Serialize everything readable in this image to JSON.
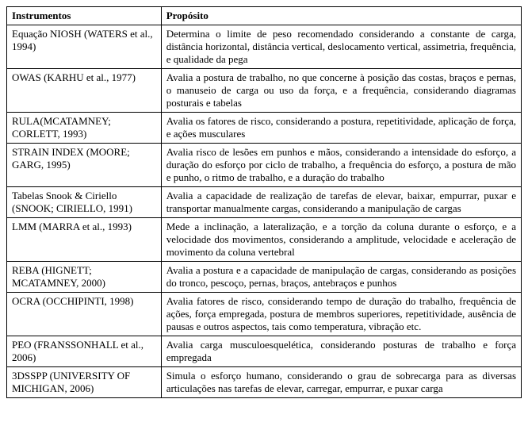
{
  "headers": {
    "col1": "Instrumentos",
    "col2": "Propósito"
  },
  "rows": [
    {
      "instrumento": "Equação NIOSH (WATERS et al., 1994)",
      "proposito": "Determina o limite de peso recomendado considerando a constante de carga, distância horizontal, distância vertical, deslocamento vertical, assimetria, frequência, e qualidade da pega"
    },
    {
      "instrumento": "OWAS (KARHU et al., 1977)",
      "proposito": "Avalia a postura de trabalho, no que concerne à posição das costas, braços e pernas, o manuseio de carga ou uso da força, e a frequência, considerando diagramas posturais e tabelas"
    },
    {
      "instrumento": "RULA(MCATAMNEY; CORLETT, 1993)",
      "proposito": "Avalia os fatores de risco, considerando a postura, repetitividade, aplicação de força, e ações musculares"
    },
    {
      "instrumento": "STRAIN INDEX (MOORE; GARG, 1995)",
      "proposito": "Avalia risco de lesões em punhos e mãos, considerando a intensidade do esforço, a duração do esforço por ciclo de trabalho, a frequência do esforço, a postura de mão e punho, o ritmo de trabalho, e a duração do trabalho"
    },
    {
      "instrumento": "Tabelas Snook & Ciriello (SNOOK; CIRIELLO, 1991)",
      "proposito": "Avalia a capacidade de realização de tarefas de elevar, baixar, empurrar, puxar e transportar manualmente cargas, considerando a manipulação de cargas"
    },
    {
      "instrumento": "LMM (MARRA et al., 1993)",
      "proposito": "Mede a inclinação, a lateralização, e a torção da coluna durante o esforço, e a velocidade dos movimentos, considerando a amplitude, velocidade e aceleração de movimento da coluna vertebral"
    },
    {
      "instrumento": "REBA (HIGNETT; MCATAMNEY, 2000)",
      "proposito": "Avalia a postura e a capacidade de manipulação de cargas, considerando as posições do tronco, pescoço, pernas, braços, antebraços e punhos"
    },
    {
      "instrumento": "OCRA (OCCHIPINTI, 1998)",
      "proposito": "Avalia fatores de risco, considerando tempo de duração do trabalho, frequência de ações, força empregada, postura de membros superiores, repetitividade, ausência de pausas e outros aspectos, tais como temperatura, vibração etc."
    },
    {
      "instrumento": "PEO (FRANSSONHALL et al., 2006)",
      "proposito": "Avalia carga musculoesquelética, considerando posturas de trabalho e força empregada"
    },
    {
      "instrumento": "3DSSPP (UNIVERSITY OF MICHIGAN, 2006)",
      "proposito": "Simula o esforço humano, considerando o grau de sobrecarga para as diversas articulações nas tarefas de elevar, carregar, empurrar, e puxar carga"
    }
  ]
}
